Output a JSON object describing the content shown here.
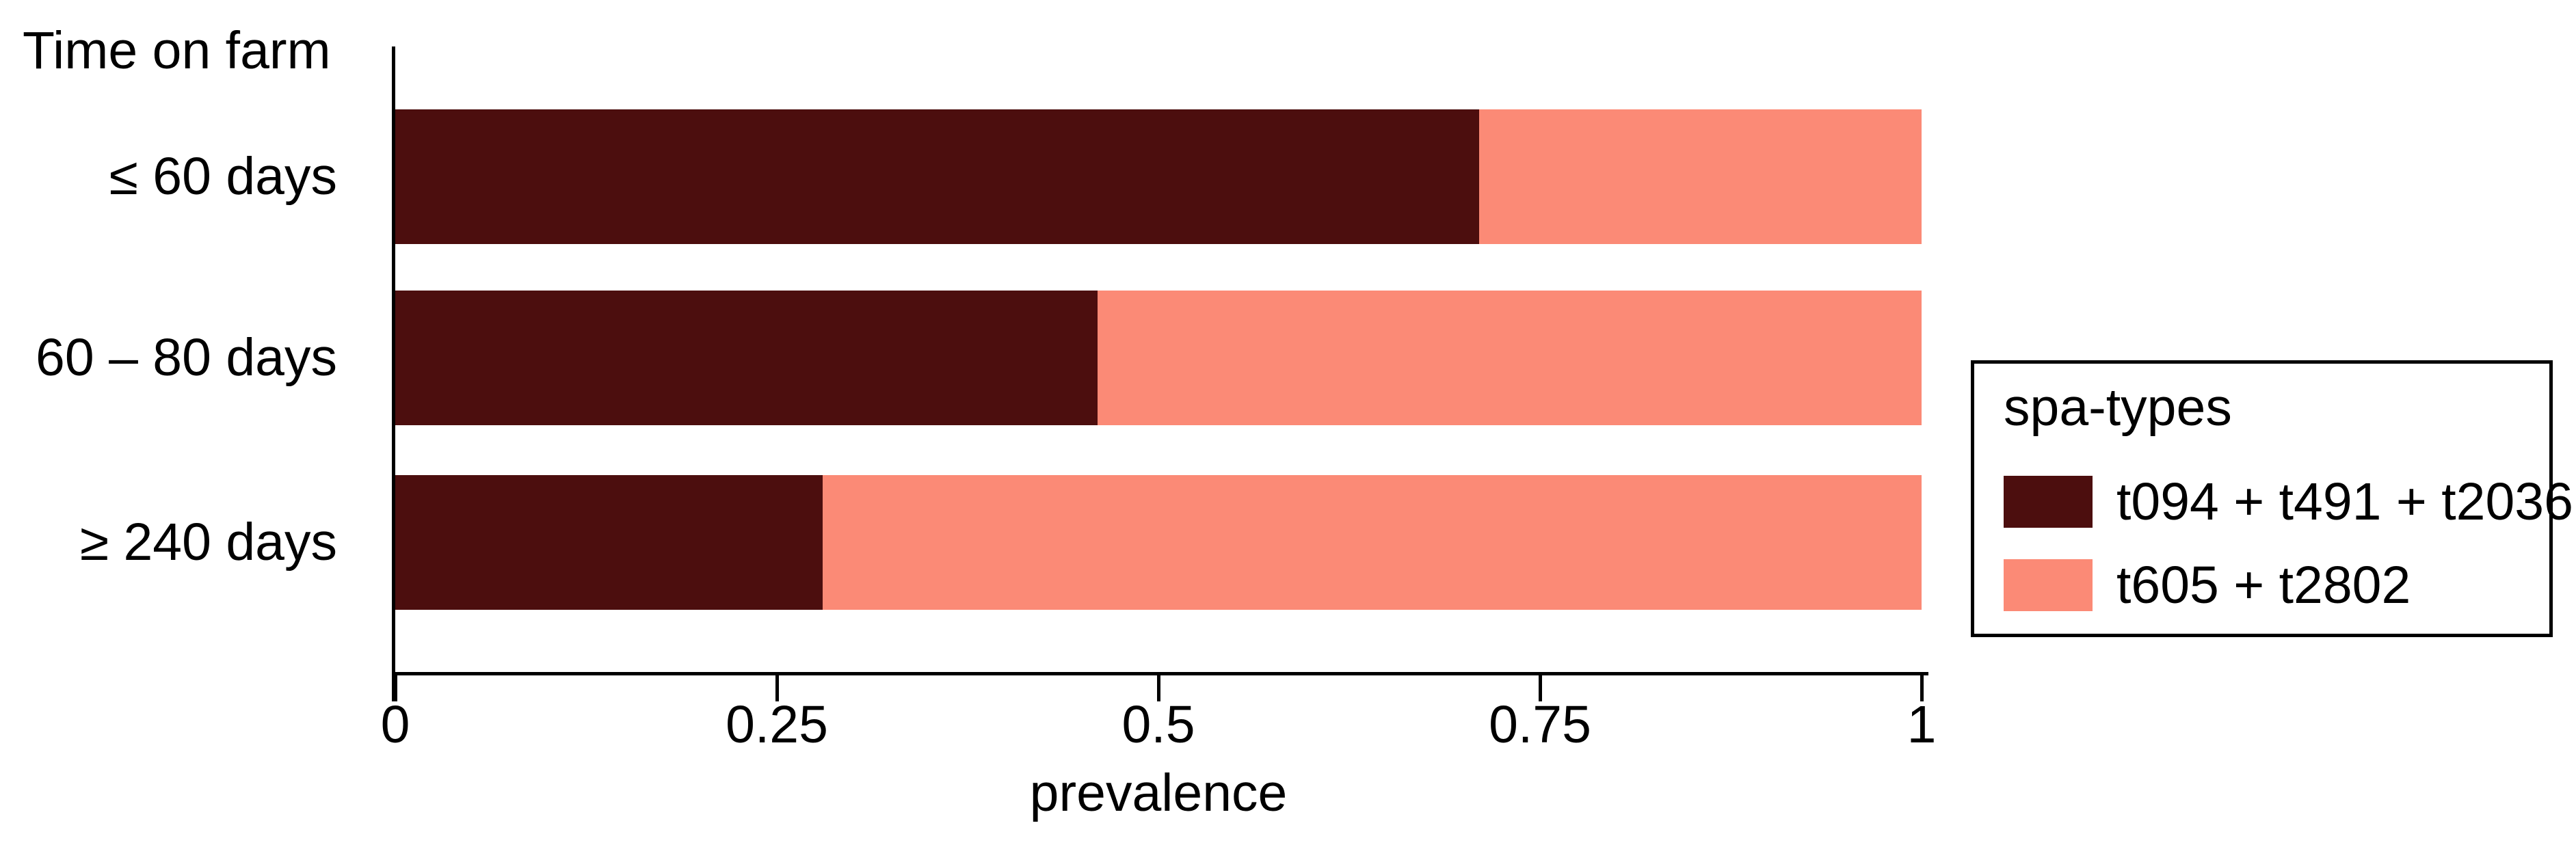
{
  "chart_data": {
    "type": "bar",
    "orientation": "horizontal",
    "stacked": true,
    "header": "Time on farm",
    "categories": [
      "≤ 60 days",
      "60 – 80 days",
      "≥ 240 days"
    ],
    "series": [
      {
        "name": "t094 + t491 + t2036",
        "color": "#4C0E0E",
        "values": [
          0.71,
          0.46,
          0.28
        ]
      },
      {
        "name": "t605 + t2802",
        "color": "#FB8A76",
        "values": [
          0.29,
          0.54,
          0.72
        ]
      }
    ],
    "xlabel": "prevalence",
    "xlim": [
      0,
      1
    ],
    "x_ticks": [
      "0",
      "0.25",
      "0.5",
      "0.75",
      "1"
    ],
    "legend": {
      "title": "spa-types",
      "position": "right"
    },
    "grid": false,
    "axis_color": "#000000",
    "text_color": "#000000",
    "background": "#FFFFFF"
  }
}
